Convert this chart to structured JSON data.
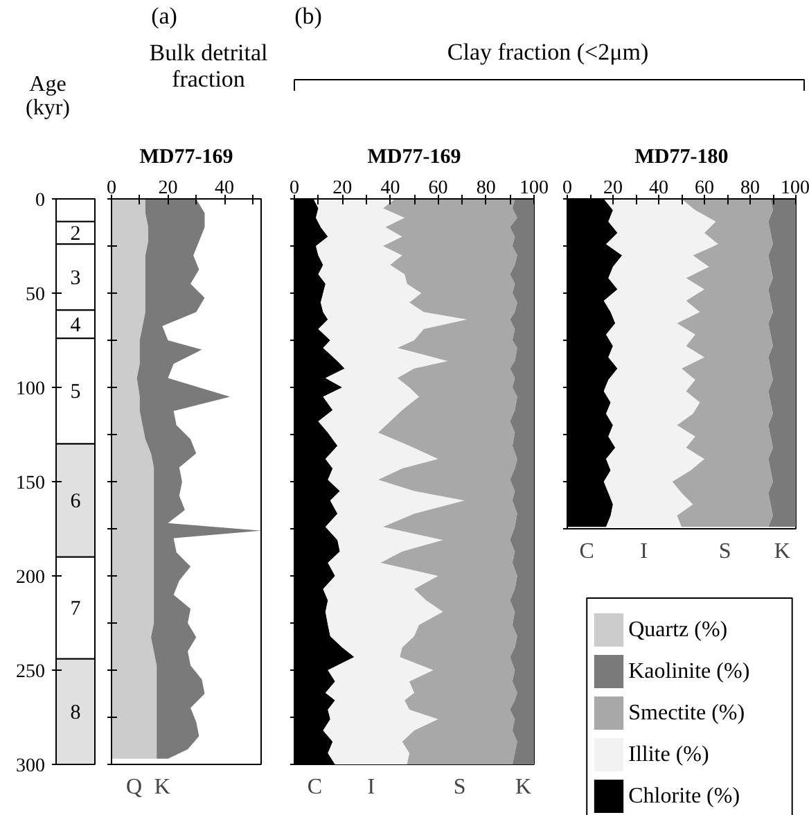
{
  "chart_data": [
    {
      "type": "bar",
      "ylabel": "Age\n(kyr)",
      "stacked": true,
      "categories": [
        null
      ],
      "ylim": [
        300,
        0
      ],
      "yticks": [
        0,
        50,
        100,
        150,
        200,
        250,
        300
      ],
      "tick_labels": "y",
      "series": [
        {
          "color": "#ffffff",
          "values": [
            12
          ]
        },
        {
          "color": "#ffffff",
          "values": [
            12
          ]
        },
        {
          "color": "#ffffff",
          "values": [
            35
          ]
        },
        {
          "color": "#ffffff",
          "values": [
            15
          ]
        },
        {
          "color": "#ffffff",
          "values": [
            56
          ]
        },
        {
          "color": "#e0e0e0",
          "values": [
            60
          ]
        },
        {
          "color": "#ffffff",
          "values": [
            54
          ]
        },
        {
          "color": "#e0e0e0",
          "values": [
            56
          ]
        }
      ],
      "annotations": [
        "2",
        "3",
        "4",
        "5",
        "6",
        "7",
        "8"
      ]
    },
    {
      "type": "area",
      "title": "Bulk detrital\nfraction",
      "subtitle": "MD77-169",
      "stacked": true,
      "orientation": "horizontal",
      "tick_labels": "x",
      "legend": "right",
      "xlim": [
        0,
        53
      ],
      "xticks": [
        0,
        {
          "value": 10,
          "label": null
        },
        20,
        {
          "value": 30,
          "label": null
        },
        40,
        {
          "value": 50,
          "label": null
        }
      ],
      "ylim": [
        300,
        0
      ],
      "yticks": [
        0,
        25,
        50,
        75,
        100,
        125,
        150,
        175,
        200,
        225,
        250,
        275,
        300
      ],
      "x": [
        0,
        7.5,
        15,
        22.5,
        30,
        37.5,
        45,
        52.5,
        60,
        67.5,
        75,
        80,
        87.5,
        95,
        105,
        112.5,
        120,
        127.5,
        135,
        142.5,
        150,
        157.5,
        165,
        172,
        176,
        180,
        187.5,
        195,
        202.5,
        210,
        217.5,
        225,
        232.5,
        240,
        247.5,
        255,
        262.5,
        270,
        277.5,
        285,
        292,
        297
      ],
      "series": [
        {
          "name": "Quartz (%)",
          "color": "#cccccc",
          "values": [
            12,
            12,
            13,
            13,
            12,
            12,
            12,
            12,
            12,
            11,
            10,
            10,
            10,
            9,
            10,
            10,
            11,
            12,
            14,
            15,
            15,
            15,
            15,
            15,
            15,
            15,
            15,
            15,
            15,
            15,
            15,
            15,
            14,
            15,
            16,
            16,
            16,
            16,
            16,
            16,
            16,
            16
          ]
        },
        {
          "name": "Kaolinite (%)",
          "color": "#7a7a7a",
          "values": [
            18,
            21,
            20,
            18,
            17,
            19,
            16,
            21,
            18,
            7,
            10,
            22,
            12,
            11,
            32,
            12,
            12,
            16,
            16,
            9,
            10,
            9,
            11,
            5,
            38,
            7,
            8,
            13,
            9,
            7,
            13,
            12,
            16,
            12,
            12,
            16,
            17,
            12,
            14,
            15,
            11,
            4
          ]
        }
      ],
      "annotations": [
        "(a)",
        "Q",
        "K"
      ]
    },
    {
      "type": "area",
      "title": "Clay fraction (<2μm)",
      "subtitle": "MD77-169",
      "stacked": true,
      "orientation": "horizontal",
      "tick_labels": "x",
      "legend": "right",
      "xlim": [
        0,
        100
      ],
      "xticks": [
        0,
        {
          "value": 10,
          "label": null
        },
        20,
        {
          "value": 30,
          "label": null
        },
        40,
        {
          "value": 50,
          "label": null
        },
        60,
        {
          "value": 70,
          "label": null
        },
        80,
        {
          "value": 90,
          "label": null
        },
        100
      ],
      "ylim": [
        300,
        0
      ],
      "yticks": [
        0,
        25,
        50,
        75,
        100,
        125,
        150,
        175,
        200,
        225,
        250,
        275,
        300
      ],
      "x": [
        0,
        5,
        10,
        15,
        20,
        25,
        30,
        35,
        40,
        45,
        50,
        55,
        60,
        64,
        69,
        75,
        79,
        86,
        90,
        95,
        100,
        105,
        112,
        118,
        124,
        131,
        138,
        143,
        149,
        155,
        160,
        167,
        174,
        181,
        187,
        193,
        200,
        207,
        213,
        219,
        226,
        232,
        238,
        243,
        250,
        256,
        262,
        266,
        271,
        276,
        282,
        288,
        294,
        300
      ],
      "series": [
        {
          "name": "Chlorite (%)",
          "color": "#000000",
          "values": [
            8,
            10,
            9,
            11,
            14,
            9,
            10,
            12,
            10,
            13,
            12,
            11,
            12,
            14,
            10,
            15,
            12,
            18,
            21,
            13,
            20,
            12,
            16,
            10,
            14,
            18,
            13,
            16,
            14,
            19,
            15,
            18,
            13,
            18,
            19,
            14,
            17,
            12,
            14,
            13,
            14,
            15,
            20,
            25,
            14,
            17,
            13,
            17,
            14,
            15,
            12,
            16,
            14,
            17
          ]
        },
        {
          "name": "Illite (%)",
          "color": "#f2f2f2",
          "values": [
            34,
            27,
            37,
            27,
            31,
            28,
            35,
            28,
            36,
            34,
            41,
            37,
            42,
            58,
            44,
            35,
            31,
            46,
            29,
            30,
            28,
            40,
            29,
            30,
            21,
            30,
            47,
            29,
            21,
            31,
            56,
            32,
            24,
            44,
            26,
            22,
            43,
            38,
            41,
            49,
            38,
            35,
            25,
            19,
            44,
            31,
            37,
            29,
            34,
            45,
            38,
            29,
            34,
            30
          ]
        },
        {
          "name": "Smectite (%)",
          "color": "#a8a8a8",
          "values": [
            50,
            54,
            47,
            52,
            47,
            54,
            48,
            52,
            44,
            45,
            38,
            45,
            38,
            18,
            38,
            41,
            50,
            28,
            40,
            49,
            43,
            41,
            47,
            50,
            57,
            43,
            33,
            47,
            55,
            42,
            20,
            43,
            55,
            28,
            47,
            55,
            33,
            42,
            35,
            30,
            39,
            43,
            47,
            46,
            34,
            43,
            43,
            46,
            42,
            32,
            41,
            48,
            44,
            44
          ]
        },
        {
          "name": "Kaolinite (%)",
          "color": "#7a7a7a",
          "values": [
            8,
            9,
            7,
            10,
            8,
            9,
            7,
            8,
            10,
            8,
            9,
            7,
            8,
            10,
            8,
            9,
            7,
            8,
            10,
            8,
            9,
            7,
            8,
            10,
            8,
            9,
            7,
            8,
            10,
            8,
            9,
            7,
            8,
            10,
            8,
            9,
            7,
            8,
            10,
            8,
            9,
            7,
            8,
            10,
            8,
            9,
            7,
            8,
            10,
            8,
            9,
            7,
            8,
            9
          ]
        }
      ],
      "annotations": [
        "(b)",
        "C",
        "I",
        "S",
        "K"
      ]
    },
    {
      "type": "area",
      "subtitle": "MD77-180",
      "stacked": true,
      "orientation": "horizontal",
      "tick_labels": "x",
      "legend": "bottom",
      "xlim": [
        0,
        100
      ],
      "xticks": [
        0,
        {
          "value": 10,
          "label": null
        },
        20,
        {
          "value": 30,
          "label": null
        },
        40,
        {
          "value": 50,
          "label": null
        },
        60,
        {
          "value": 70,
          "label": null
        },
        80,
        {
          "value": 90,
          "label": null
        },
        100
      ],
      "ylim": [
        175,
        0
      ],
      "yticks": [
        0,
        25,
        50,
        75,
        100,
        125,
        150,
        175
      ],
      "x": [
        0,
        6,
        12,
        18,
        24,
        30,
        36,
        42,
        48,
        54,
        60,
        66,
        72,
        78,
        84,
        90,
        96,
        102,
        108,
        114,
        120,
        126,
        132,
        138,
        144,
        150,
        156,
        162,
        168,
        174
      ],
      "series": [
        {
          "name": "Chlorite (%)",
          "color": "#000000",
          "values": [
            16,
            20,
            18,
            22,
            17,
            24,
            20,
            18,
            22,
            16,
            19,
            21,
            17,
            20,
            18,
            22,
            18,
            16,
            19,
            17,
            20,
            18,
            21,
            17,
            19,
            16,
            18,
            20,
            19,
            17
          ]
        },
        {
          "name": "Illite (%)",
          "color": "#f2f2f2",
          "values": [
            34,
            36,
            47,
            38,
            49,
            31,
            42,
            34,
            38,
            36,
            39,
            27,
            39,
            32,
            42,
            28,
            38,
            36,
            39,
            38,
            28,
            38,
            31,
            43,
            35,
            30,
            32,
            35,
            29,
            33
          ]
        },
        {
          "name": "Smectite (%)",
          "color": "#a8a8a8",
          "values": [
            39,
            34,
            23,
            29,
            24,
            33,
            27,
            38,
            28,
            37,
            32,
            40,
            33,
            38,
            28,
            39,
            34,
            36,
            31,
            35,
            40,
            33,
            38,
            28,
            35,
            44,
            38,
            34,
            42,
            38
          ]
        },
        {
          "name": "Kaolinite (%)",
          "color": "#7a7a7a",
          "values": [
            11,
            10,
            12,
            11,
            10,
            12,
            11,
            10,
            12,
            11,
            10,
            12,
            11,
            10,
            12,
            11,
            10,
            12,
            11,
            10,
            12,
            11,
            10,
            12,
            11,
            10,
            12,
            11,
            10,
            12
          ]
        }
      ],
      "annotations": [
        "C",
        "I",
        "S",
        "K"
      ]
    }
  ]
}
